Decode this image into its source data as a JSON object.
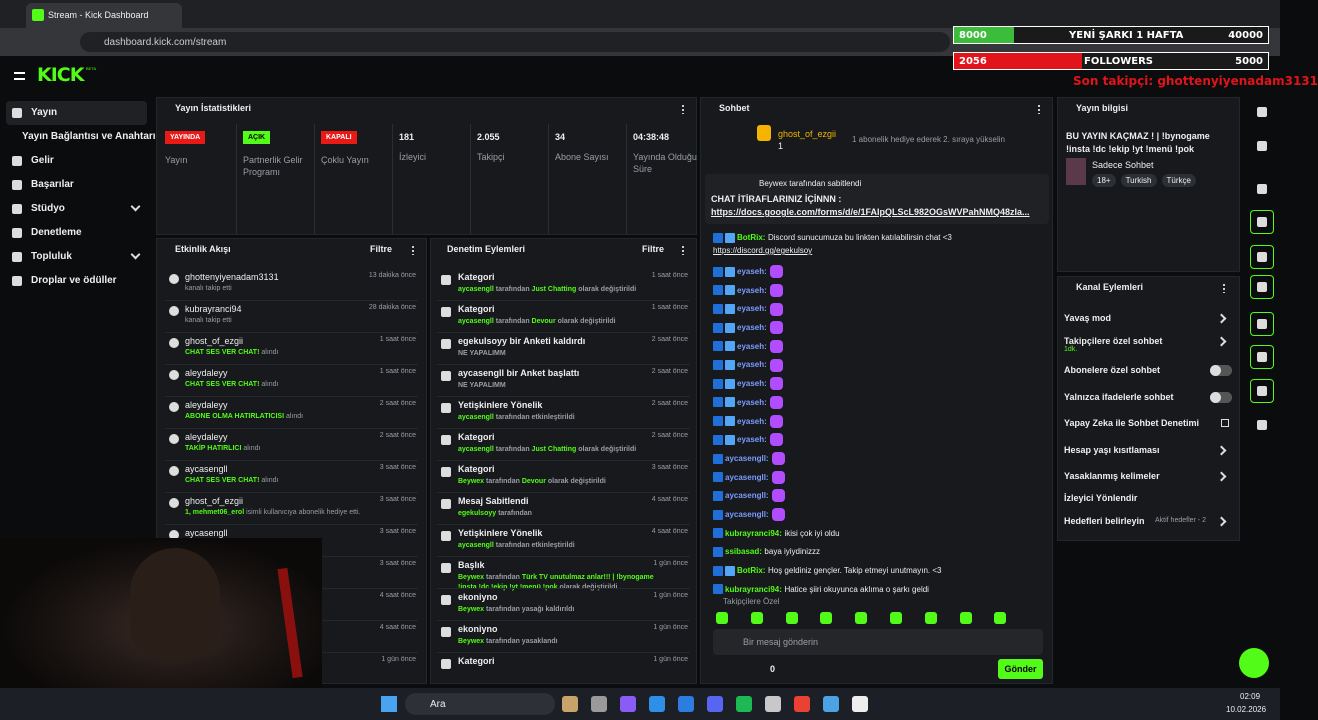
{
  "browser": {
    "tab_title": "Stream - Kick Dashboard",
    "url": "dashboard.kick.com/stream"
  },
  "overlay": {
    "goal_current": "8000",
    "goal_label": "YENİ ŞARKI 1 HAFTA",
    "goal_target": "40000",
    "followers_current": "2056",
    "followers_label": "FOLLOWERS",
    "followers_target": "5000",
    "last_follower": "Son takipçi: ghottenyiyenadam3131"
  },
  "header": {
    "logo": "KICK",
    "logo_tag": "BETA"
  },
  "sidebar": {
    "items": [
      "Yayın",
      "Yayın Bağlantısı ve Anahtarı",
      "Gelir",
      "Başarılar",
      "Stüdyo",
      "Denetleme",
      "Topluluk",
      "Droplar ve ödüller"
    ]
  },
  "stats": {
    "title": "Yayın İstatistikleri",
    "items": [
      {
        "badge": "YAYINDA",
        "badge_color": "#e91916",
        "label": "Yayın"
      },
      {
        "badge": "AÇIK",
        "badge_color": "#53fc18",
        "label": "Partnerlik Gelir Programı"
      },
      {
        "badge": "KAPALI",
        "badge_color": "#e91916",
        "label": "Çoklu Yayın"
      },
      {
        "value": 181,
        "label": "İzleyici"
      },
      {
        "value": "2.055",
        "label": "Takipçi"
      },
      {
        "value": 34,
        "label": "Abone Sayısı"
      },
      {
        "value": "04:38:48",
        "label": "Yayında Olduğu Süre"
      }
    ]
  },
  "activity": {
    "title": "Etkinlik Akışı",
    "filter": "Filtre",
    "items": [
      {
        "name": "ghottenyiyenadam3131",
        "detail": "kanalı takip etti",
        "time": "13 dakika önce"
      },
      {
        "name": "kubrayranci94",
        "detail": "kanalı takip etti",
        "time": "28 dakika önce"
      },
      {
        "name": "ghost_of_ezgii",
        "reward": "CHAT SES VER CHAT!",
        "detail": "alındı",
        "time": "1 saat önce"
      },
      {
        "name": "aleydaleyy",
        "reward": "CHAT SES VER CHAT!",
        "detail": "alındı",
        "time": "1 saat önce"
      },
      {
        "name": "aleydaleyy",
        "reward": "ABONE OLMA HATIRLATICISI",
        "detail": "alındı",
        "time": "2 saat önce"
      },
      {
        "name": "aleydaleyy",
        "reward": "TAKİP HATIRLICI",
        "detail": "alındı",
        "time": "2 saat önce"
      },
      {
        "name": "aycasengll",
        "reward": "CHAT SES VER CHAT!",
        "detail": "alındı",
        "time": "3 saat önce"
      },
      {
        "name": "ghost_of_ezgii",
        "reward": "1, mehmet06_erol",
        "detail": "isimli kullanıcıya abonelik hediye etti.",
        "time": "3 saat önce"
      },
      {
        "name": "aycasengll",
        "time": "3 saat önce"
      },
      {
        "time": "3 saat önce"
      },
      {
        "time": "4 saat önce"
      },
      {
        "time": "4 saat önce"
      },
      {
        "time": "1 gün önce"
      }
    ]
  },
  "moderation": {
    "title": "Denetim Eylemleri",
    "filter": "Filtre",
    "items": [
      {
        "title": "Kategori",
        "detail": [
          "aycasengll",
          " tarafından ",
          "Just Chatting",
          " olarak değiştirildi"
        ],
        "time": "1 saat önce"
      },
      {
        "title": "Kategori",
        "detail": [
          "aycasengll",
          " tarafından ",
          "Devour",
          " olarak değiştirildi"
        ],
        "time": "1 saat önce"
      },
      {
        "title": "egekulsoyy bir Anketi kaldırdı",
        "detail": [
          "",
          "NE YAPALIMM"
        ],
        "time": "2 saat önce"
      },
      {
        "title": "aycasengll bir Anket başlattı",
        "detail": [
          "",
          "NE YAPALIMM"
        ],
        "time": "2 saat önce"
      },
      {
        "title": "Yetişkinlere Yönelik",
        "detail": [
          "aycasengll",
          " tarafından etkinleştirildi"
        ],
        "time": "2 saat önce"
      },
      {
        "title": "Kategori",
        "detail": [
          "aycasengll",
          " tarafından ",
          "Just Chatting",
          " olarak değiştirildi"
        ],
        "time": "2 saat önce"
      },
      {
        "title": "Kategori",
        "detail": [
          "Beywex",
          " tarafından ",
          "Devour",
          " olarak değiştirildi"
        ],
        "time": "3 saat önce"
      },
      {
        "title": "Mesaj Sabitlendi",
        "detail": [
          "egekulsoyy",
          " tarafından"
        ],
        "time": "4 saat önce"
      },
      {
        "title": "Yetişkinlere Yönelik",
        "detail": [
          "aycasengll",
          " tarafından etkinleştirildi"
        ],
        "time": "4 saat önce"
      },
      {
        "title": "Başlık",
        "detail": [
          "Beywex",
          " tarafından ",
          "Türk TV unutulmaz anlar!!! | !bynogame !insta !dc !ekip !yt !menü !pok",
          " olarak değiştirildi"
        ],
        "time": "1 gün önce"
      },
      {
        "title": "ekoniyno",
        "detail": [
          "Beywex",
          " tarafından yasağı kaldırıldı"
        ],
        "time": "1 gün önce"
      },
      {
        "title": "ekoniyno",
        "detail": [
          "Beywex",
          " tarafından yasaklandı"
        ],
        "time": "1 gün önce"
      },
      {
        "title": "Kategori",
        "time": "1 gün önce"
      }
    ]
  },
  "chat": {
    "title": "Sohbet",
    "top_gifter": "ghost_of_ezgii",
    "top_gifter_count": 1,
    "gift_hint": "1 abonelik hediye ederek 2. sıraya yükselin",
    "pinned_by": "Beywex tarafından sabitlendi",
    "pinned_text": "CHAT İTİRAFLARINIZ İÇİNNN :",
    "pinned_link": "https://docs.google.com/forms/d/e/1FAIpQLScL982OGsWVPahNMQ48zla...",
    "messages": [
      {
        "user": "BotRix:",
        "color": "#53fc18",
        "text": "Discord sunucumuza bu linkten katılabilirsin chat <3",
        "link": "https://discord.gg/egekulsoy"
      },
      {
        "user": "eyaseh:",
        "color": "#7b9cff"
      },
      {
        "user": "eyaseh:",
        "color": "#7b9cff"
      },
      {
        "user": "eyaseh:",
        "color": "#7b9cff"
      },
      {
        "user": "eyaseh:",
        "color": "#7b9cff"
      },
      {
        "user": "eyaseh:",
        "color": "#7b9cff"
      },
      {
        "user": "eyaseh:",
        "color": "#7b9cff"
      },
      {
        "user": "eyaseh:",
        "color": "#7b9cff"
      },
      {
        "user": "eyaseh:",
        "color": "#7b9cff"
      },
      {
        "user": "eyaseh:",
        "color": "#7b9cff"
      },
      {
        "user": "eyaseh:",
        "color": "#7b9cff"
      },
      {
        "user": "aycasengll:",
        "color": "#7b9cff"
      },
      {
        "user": "aycasengll:",
        "color": "#7b9cff"
      },
      {
        "user": "aycasengll:",
        "color": "#7b9cff"
      },
      {
        "user": "aycasengll:",
        "color": "#7b9cff"
      },
      {
        "user": "kubrayranci94:",
        "color": "#53fc18",
        "text": "ikisi çok iyi oldu"
      },
      {
        "user": "ssibasad:",
        "color": "#53fc18",
        "text": "baya iyiydinizzz"
      },
      {
        "user": "BotRix:",
        "color": "#53fc18",
        "text": "Hoş geldiniz gençler. Takip etmeyi unutmayın. <3"
      },
      {
        "user": "kubrayranci94:",
        "color": "#53fc18",
        "text": "Hatice şiiri okuyunca aklıma o şarkı geldi"
      }
    ],
    "mode": "Takipçilere Özel",
    "placeholder": "Bir mesaj gönderin",
    "points": 0,
    "send": "Gönder"
  },
  "stream_info": {
    "title": "Yayın bilgisi",
    "stream_title": "BU YAYIN KAÇMAZ ! | !bynogame !insta !dc !ekip !yt !menü !pok",
    "category": "Sadece Sohbet",
    "tags": [
      "18+",
      "Turkish",
      "Türkçe"
    ]
  },
  "channel_actions": {
    "title": "Kanal Eylemleri",
    "items": [
      {
        "label": "Yavaş mod",
        "control": "arrow"
      },
      {
        "label": "Takipçilere özel sohbet",
        "sub": "1dk.",
        "control": "arrow"
      },
      {
        "label": "Abonelere özel sohbet",
        "control": "toggle"
      },
      {
        "label": "Yalnızca ifadelerle sohbet",
        "control": "toggle"
      },
      {
        "label": "Yapay Zeka ile Sohbet Denetimi",
        "control": "link"
      },
      {
        "label": "Hesap yaşı kısıtlaması",
        "control": "arrow"
      },
      {
        "label": "Yasaklanmış kelimeler",
        "control": "arrow"
      },
      {
        "label": "İzleyici Yönlendir"
      },
      {
        "label": "Hedefleri belirleyin",
        "side": "Aktif hedefler - 2",
        "control": "arrow"
      }
    ]
  },
  "taskbar": {
    "search": "Ara",
    "time": "02:09",
    "date": "10.02.2026"
  }
}
